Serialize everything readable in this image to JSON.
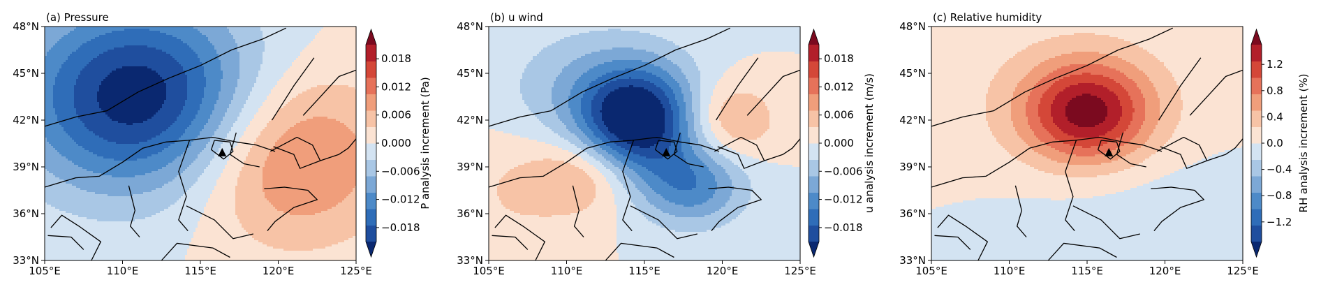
{
  "chart_data": [
    {
      "type": "heatmap",
      "title": "(a) Pressure",
      "xlabel": "",
      "ylabel": "",
      "x_ticks": [
        "105°E",
        "110°E",
        "115°E",
        "120°E",
        "125°E"
      ],
      "y_ticks": [
        "48°N",
        "45°N",
        "42°N",
        "39°N",
        "36°N",
        "33°N"
      ],
      "xlim": [
        105,
        125
      ],
      "ylim": [
        33,
        48
      ],
      "colorbar": {
        "label": "P analysis increment (Pa)",
        "ticks": [
          "0.018",
          "0.012",
          "0.006",
          "0.000",
          "−0.006",
          "−0.012",
          "−0.018"
        ],
        "tick_values": [
          0.018,
          0.012,
          0.006,
          0.0,
          -0.006,
          -0.012,
          -0.018
        ],
        "range": [
          -0.021,
          0.021
        ]
      },
      "field": {
        "features": [
          {
            "lon": 111.0,
            "lat": 43.5,
            "value": -0.0205,
            "radius_lon": 7.5,
            "radius_lat": 6.0
          },
          {
            "lon": 120.8,
            "lat": 39.6,
            "value": 0.0105,
            "radius_lon": 6.5,
            "radius_lat": 5.5
          }
        ]
      },
      "marker": {
        "lon": 116.4,
        "lat": 39.9,
        "symbol": "triangle"
      }
    },
    {
      "type": "heatmap",
      "title": "(b) u wind",
      "xlabel": "",
      "ylabel": "",
      "x_ticks": [
        "105°E",
        "110°E",
        "115°E",
        "120°E",
        "125°E"
      ],
      "y_ticks": [
        "48°N",
        "45°N",
        "42°N",
        "39°N",
        "36°N",
        "33°N"
      ],
      "xlim": [
        105,
        125
      ],
      "ylim": [
        33,
        48
      ],
      "colorbar": {
        "label": "u analysis increment (m/s)",
        "ticks": [
          "0.018",
          "0.012",
          "0.006",
          "0.000",
          "−0.006",
          "−0.012",
          "−0.018"
        ],
        "tick_values": [
          0.018,
          0.012,
          0.006,
          0.0,
          -0.006,
          -0.012,
          -0.018
        ],
        "range": [
          -0.021,
          0.021
        ]
      },
      "field": {
        "features": [
          {
            "lon": 114.5,
            "lat": 42.0,
            "value": -0.0205,
            "radius_lon": 3.6,
            "radius_lat": 3.2
          },
          {
            "lon": 118.0,
            "lat": 37.8,
            "value": -0.011,
            "radius_lon": 3.5,
            "radius_lat": 2.6
          },
          {
            "lon": 112.0,
            "lat": 44.0,
            "value": -0.006,
            "radius_lon": 6.0,
            "radius_lat": 4.0
          },
          {
            "lon": 111.0,
            "lat": 38.5,
            "value": 0.0065,
            "radius_lon": 3.2,
            "radius_lat": 2.5
          },
          {
            "lon": 120.5,
            "lat": 42.0,
            "value": 0.007,
            "radius_lon": 3.0,
            "radius_lat": 2.5
          },
          {
            "lon": 106.5,
            "lat": 37.5,
            "value": 0.003,
            "radius_lon": 4.0,
            "radius_lat": 4.0
          }
        ]
      },
      "marker": {
        "lon": 116.4,
        "lat": 39.9,
        "symbol": "triangle"
      }
    },
    {
      "type": "heatmap",
      "title": "(c) Relative humidity",
      "xlabel": "",
      "ylabel": "",
      "x_ticks": [
        "105°E",
        "110°E",
        "115°E",
        "120°E",
        "125°E"
      ],
      "y_ticks": [
        "48°N",
        "45°N",
        "42°N",
        "39°N",
        "36°N",
        "33°N"
      ],
      "xlim": [
        105,
        125
      ],
      "ylim": [
        33,
        48
      ],
      "colorbar": {
        "label": "RH analysis increment (%)",
        "ticks": [
          "1.2",
          "0.8",
          "0.4",
          "0.0",
          "−0.4",
          "−0.8",
          "−1.2"
        ],
        "tick_values": [
          1.2,
          0.8,
          0.4,
          0.0,
          -0.4,
          -0.8,
          -1.2
        ],
        "range": [
          -1.5,
          1.5
        ]
      },
      "field": {
        "features": [
          {
            "lon": 115.0,
            "lat": 42.5,
            "value": 1.25,
            "radius_lon": 4.0,
            "radius_lat": 3.2
          },
          {
            "lon": 114.0,
            "lat": 43.0,
            "value": 0.2,
            "radius_lon": 9.0,
            "radius_lat": 6.0
          },
          {
            "lon": 117.5,
            "lat": 37.0,
            "value": -0.15,
            "radius_lon": 9.0,
            "radius_lat": 4.0
          }
        ]
      },
      "marker": {
        "lon": 116.4,
        "lat": 39.9,
        "symbol": "triangle"
      }
    }
  ],
  "colormap": {
    "name": "RdBu_r",
    "levels": 14,
    "colors": [
      "#0a2870",
      "#1f4e9e",
      "#2f6db8",
      "#4d8ac8",
      "#7ca8d6",
      "#a9c7e5",
      "#d3e3f2",
      "#fbe3d3",
      "#f7c3a6",
      "#f09e7b",
      "#e6725a",
      "#d44738",
      "#b21f2a",
      "#7b0a1f"
    ]
  },
  "boundary_color": "#000000"
}
